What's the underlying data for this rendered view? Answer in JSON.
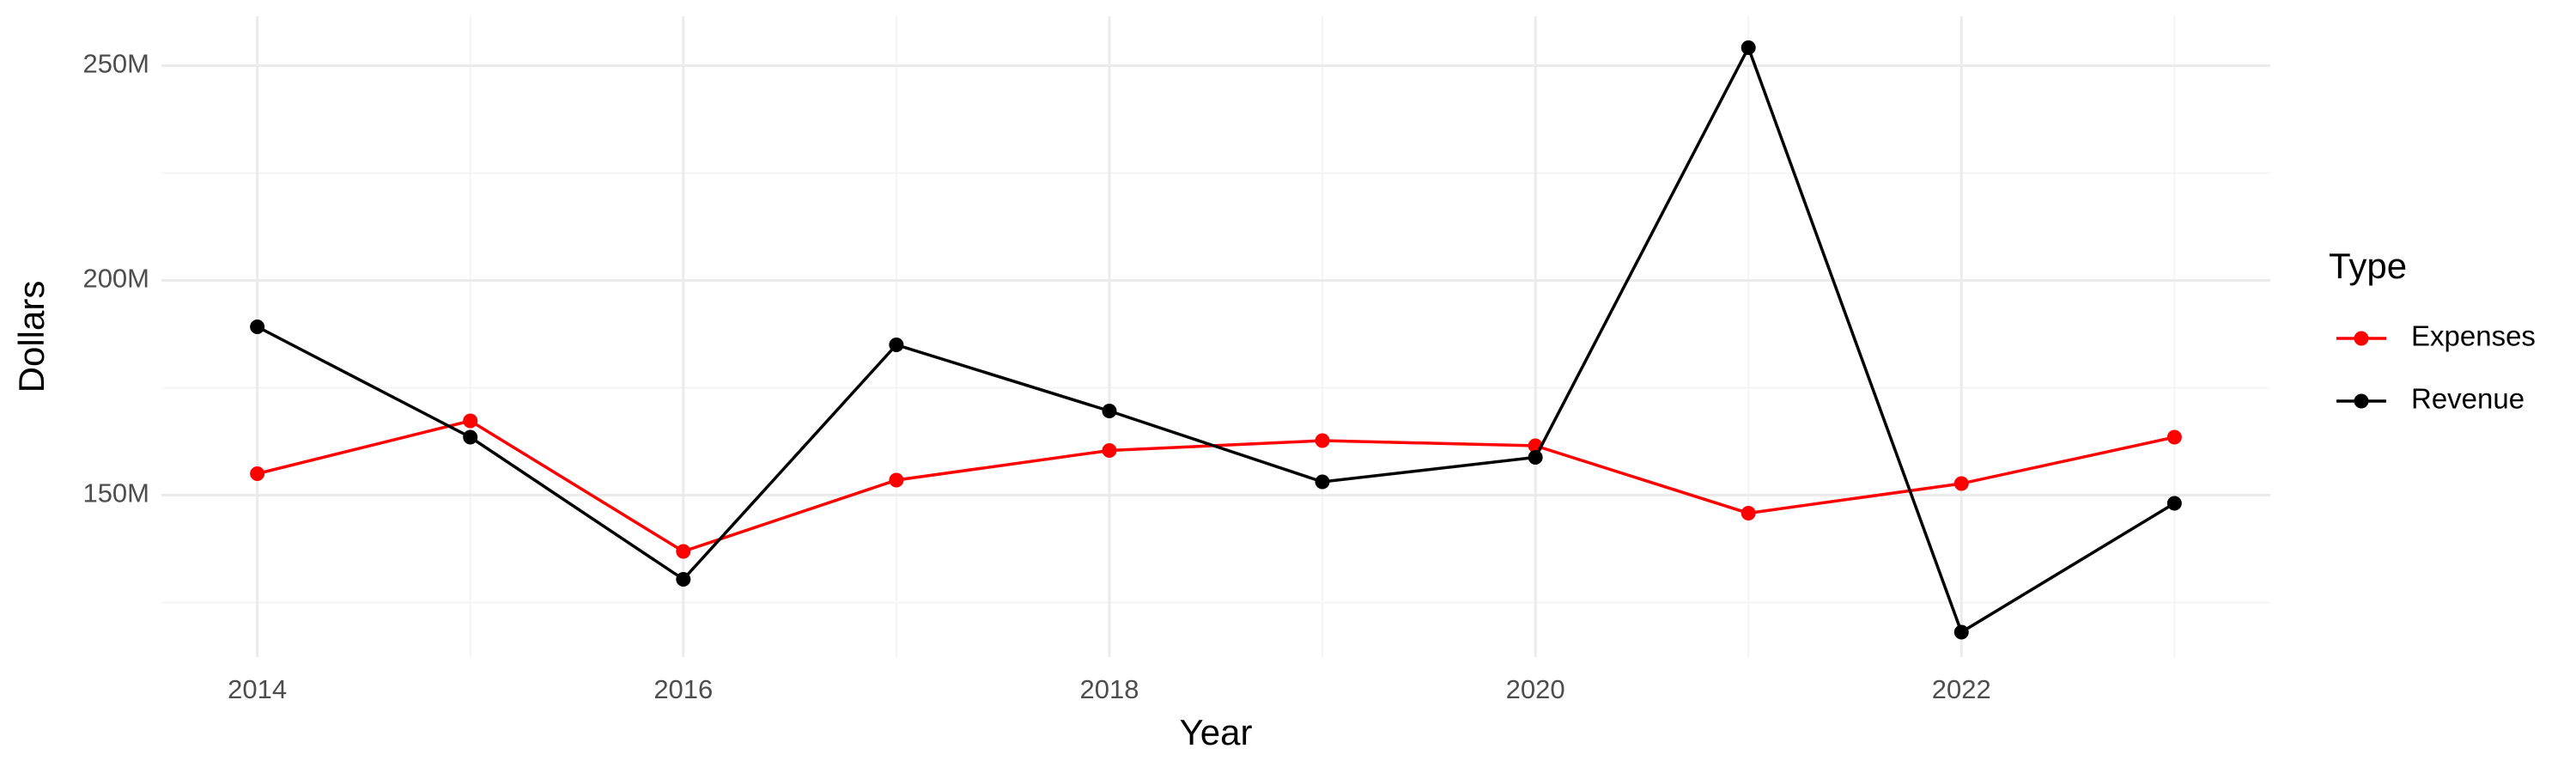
{
  "chart_data": {
    "type": "line",
    "x_label": "Year",
    "y_label": "Dollars",
    "legend_title": "Type",
    "x": [
      2014,
      2015,
      2016,
      2017,
      2018,
      2019,
      2020,
      2021,
      2022,
      2023
    ],
    "series": [
      {
        "name": "Expenses",
        "color": "#ff0000",
        "values": [
          155000000,
          167300000,
          136900000,
          153500000,
          160400000,
          162700000,
          161500000,
          145800000,
          152700000,
          163500000
        ]
      },
      {
        "name": "Revenue",
        "color": "#000000",
        "values": [
          189200000,
          163500000,
          130400000,
          185000000,
          169600000,
          153100000,
          158800000,
          254200000,
          118100000,
          148100000
        ]
      }
    ],
    "xlim": [
      2013.55,
      2023.45
    ],
    "xticks": [
      2014,
      2016,
      2018,
      2020,
      2022
    ],
    "ylim": [
      112300000,
      261500000
    ],
    "yticks": [
      {
        "value": 150000000,
        "label": "150M"
      },
      {
        "value": 200000000,
        "label": "200M"
      },
      {
        "value": 250000000,
        "label": "250M"
      }
    ],
    "grid": true,
    "legend": "right"
  }
}
